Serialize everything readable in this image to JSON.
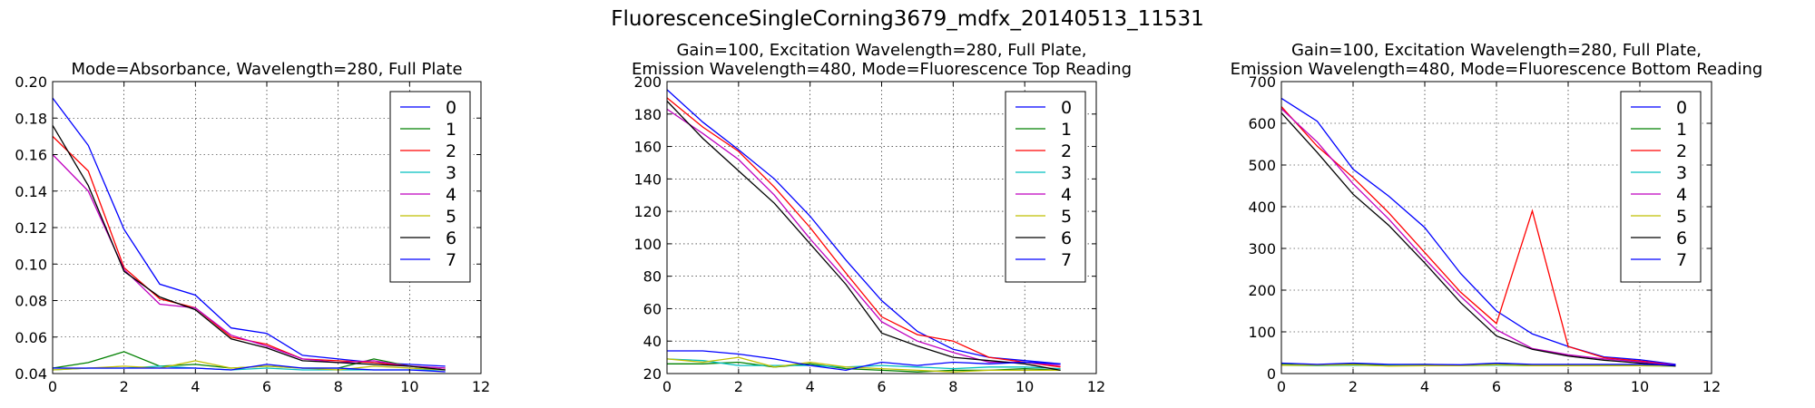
{
  "figure": {
    "suptitle": "FluorescenceSingleCorning3679_mdfx_20140513_11531"
  },
  "colors": [
    "#0000ff",
    "#008000",
    "#ff0000",
    "#00bfbf",
    "#bf00bf",
    "#bfbf00",
    "#000000",
    "#0000ff"
  ],
  "chart_data": [
    {
      "type": "line",
      "title": "Mode=Absorbance, Wavelength=280, Full Plate",
      "xlim": [
        0,
        12
      ],
      "ylim": [
        0.04,
        0.2
      ],
      "xticks": [
        0,
        2,
        4,
        6,
        8,
        10,
        12
      ],
      "xtick_labels": [
        "0",
        "2",
        "4",
        "6",
        "8",
        "10",
        "12"
      ],
      "yticks": [
        0.04,
        0.06,
        0.08,
        0.1,
        0.12,
        0.14,
        0.16,
        0.18,
        0.2
      ],
      "ytick_labels": [
        "0.04",
        "0.06",
        "0.08",
        "0.10",
        "0.12",
        "0.14",
        "0.16",
        "0.18",
        "0.20"
      ],
      "grid": true,
      "legend": "top-right",
      "x": [
        0,
        1,
        2,
        3,
        4,
        5,
        6,
        7,
        8,
        9,
        10,
        11
      ],
      "series": [
        {
          "name": "0",
          "values": [
            0.191,
            0.165,
            0.119,
            0.089,
            0.083,
            0.065,
            0.062,
            0.05,
            0.048,
            0.046,
            0.045,
            0.044
          ]
        },
        {
          "name": "1",
          "values": [
            0.043,
            0.046,
            0.052,
            0.044,
            0.045,
            0.043,
            0.044,
            0.043,
            0.043,
            0.048,
            0.044,
            0.042
          ]
        },
        {
          "name": "2",
          "values": [
            0.17,
            0.151,
            0.098,
            0.081,
            0.076,
            0.06,
            0.056,
            0.048,
            0.047,
            0.046,
            0.044,
            0.043
          ]
        },
        {
          "name": "3",
          "values": [
            0.042,
            0.043,
            0.043,
            0.044,
            0.043,
            0.042,
            0.043,
            0.042,
            0.042,
            0.042,
            0.042,
            0.042
          ]
        },
        {
          "name": "4",
          "values": [
            0.16,
            0.14,
            0.097,
            0.078,
            0.076,
            0.061,
            0.055,
            0.048,
            0.046,
            0.047,
            0.044,
            0.043
          ]
        },
        {
          "name": "5",
          "values": [
            0.042,
            0.043,
            0.044,
            0.043,
            0.047,
            0.043,
            0.044,
            0.043,
            0.042,
            0.044,
            0.043,
            0.042
          ]
        },
        {
          "name": "6",
          "values": [
            0.176,
            0.143,
            0.096,
            0.082,
            0.075,
            0.059,
            0.054,
            0.047,
            0.046,
            0.045,
            0.044,
            0.042
          ]
        },
        {
          "name": "7",
          "values": [
            0.043,
            0.043,
            0.043,
            0.043,
            0.043,
            0.042,
            0.045,
            0.043,
            0.043,
            0.042,
            0.042,
            0.041
          ]
        }
      ]
    },
    {
      "type": "line",
      "title": "Gain=100, Excitation Wavelength=280, Full Plate,\nEmission Wavelength=480, Mode=Fluorescence Top Reading",
      "xlim": [
        0,
        12
      ],
      "ylim": [
        20,
        200
      ],
      "xticks": [
        0,
        2,
        4,
        6,
        8,
        10,
        12
      ],
      "xtick_labels": [
        "0",
        "2",
        "4",
        "6",
        "8",
        "10",
        "12"
      ],
      "yticks": [
        20,
        40,
        60,
        80,
        100,
        120,
        140,
        160,
        180,
        200
      ],
      "ytick_labels": [
        "20",
        "40",
        "60",
        "80",
        "100",
        "120",
        "140",
        "160",
        "180",
        "200"
      ],
      "grid": true,
      "legend": "top-right",
      "x": [
        0,
        1,
        2,
        3,
        4,
        5,
        6,
        7,
        8,
        9,
        10,
        11
      ],
      "series": [
        {
          "name": "0",
          "values": [
            195,
            175,
            158,
            140,
            117,
            90,
            65,
            46,
            35,
            30,
            28,
            26
          ]
        },
        {
          "name": "1",
          "values": [
            26,
            26,
            27,
            24,
            26,
            23,
            22,
            21,
            22,
            22,
            23,
            22
          ]
        },
        {
          "name": "2",
          "values": [
            190,
            172,
            157,
            135,
            110,
            82,
            55,
            44,
            40,
            30,
            27,
            24
          ]
        },
        {
          "name": "3",
          "values": [
            29,
            28,
            25,
            25,
            25,
            24,
            25,
            24,
            23,
            24,
            24,
            23
          ]
        },
        {
          "name": "4",
          "values": [
            183,
            168,
            152,
            130,
            103,
            78,
            52,
            40,
            33,
            27,
            27,
            25
          ]
        },
        {
          "name": "5",
          "values": [
            29,
            27,
            30,
            24,
            27,
            24,
            23,
            22,
            21,
            22,
            22,
            22
          ]
        },
        {
          "name": "6",
          "values": [
            188,
            165,
            145,
            125,
            100,
            75,
            45,
            37,
            30,
            28,
            26,
            22
          ]
        },
        {
          "name": "7",
          "values": [
            34,
            34,
            32,
            29,
            25,
            22,
            27,
            25,
            27,
            26,
            27,
            26
          ]
        }
      ]
    },
    {
      "type": "line",
      "title": "Gain=100, Excitation Wavelength=280, Full Plate,\nEmission Wavelength=480, Mode=Fluorescence Bottom Reading",
      "xlim": [
        0,
        12
      ],
      "ylim": [
        0,
        700
      ],
      "xticks": [
        0,
        2,
        4,
        6,
        8,
        10,
        12
      ],
      "xtick_labels": [
        "0",
        "2",
        "4",
        "6",
        "8",
        "10",
        "12"
      ],
      "yticks": [
        0,
        100,
        200,
        300,
        400,
        500,
        600,
        700
      ],
      "ytick_labels": [
        "0",
        "100",
        "200",
        "300",
        "400",
        "500",
        "600",
        "700"
      ],
      "grid": true,
      "legend": "top-right",
      "x": [
        0,
        1,
        2,
        3,
        4,
        5,
        6,
        7,
        8,
        9,
        10,
        11
      ],
      "series": [
        {
          "name": "0",
          "values": [
            660,
            605,
            490,
            425,
            350,
            240,
            150,
            95,
            65,
            40,
            33,
            22
          ]
        },
        {
          "name": "1",
          "values": [
            22,
            20,
            23,
            21,
            22,
            20,
            22,
            20,
            21,
            20,
            20,
            19
          ]
        },
        {
          "name": "2",
          "values": [
            640,
            545,
            470,
            385,
            290,
            195,
            120,
            390,
            65,
            38,
            30,
            20
          ]
        },
        {
          "name": "3",
          "values": [
            20,
            19,
            20,
            19,
            19,
            19,
            20,
            19,
            19,
            19,
            19,
            18
          ]
        },
        {
          "name": "4",
          "values": [
            635,
            555,
            455,
            370,
            275,
            185,
            105,
            60,
            45,
            35,
            28,
            20
          ]
        },
        {
          "name": "5",
          "values": [
            20,
            20,
            21,
            18,
            19,
            19,
            21,
            19,
            19,
            19,
            19,
            18
          ]
        },
        {
          "name": "6",
          "values": [
            625,
            530,
            430,
            355,
            265,
            170,
            90,
            58,
            42,
            32,
            25,
            18
          ]
        },
        {
          "name": "7",
          "values": [
            25,
            22,
            25,
            22,
            22,
            21,
            25,
            22,
            22,
            22,
            22,
            20
          ]
        }
      ]
    }
  ]
}
